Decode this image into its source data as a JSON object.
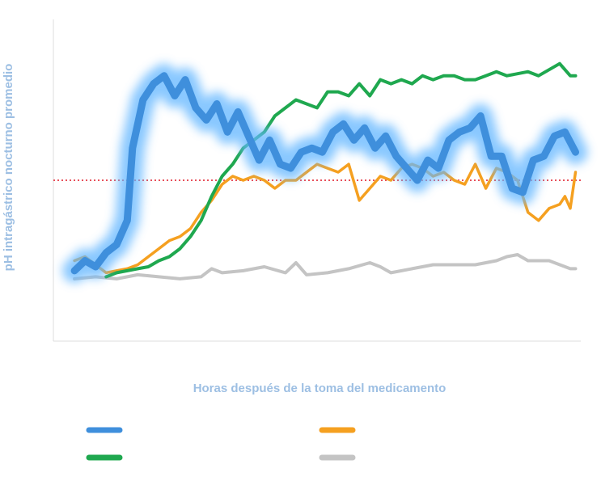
{
  "chart_data": {
    "type": "line",
    "title": "",
    "xlabel": "Horas después de la toma del medicamento",
    "ylabel": "pH intragástrico nocturno promedio",
    "xlim": [
      0,
      100
    ],
    "ylim": [
      0,
      8
    ],
    "grid": false,
    "legend_position": "bottom",
    "threshold": {
      "value": 4.0,
      "style": "dotted",
      "color": "#e8505b"
    },
    "colors": {
      "label": "#9dbfe3",
      "axis": "#dddddd",
      "blue": "#3f8fdc",
      "blue_glow": "#62b6ff",
      "green": "#1fa84f",
      "orange": "#f5a020",
      "gray": "#c4c4c4"
    },
    "series": [
      {
        "name": "",
        "color_key": "blue",
        "glow": true,
        "x": [
          4,
          6,
          8,
          10,
          12,
          14,
          15,
          17,
          19,
          21,
          23,
          25,
          27,
          29,
          31,
          33,
          35,
          37,
          39,
          41,
          43,
          45,
          47,
          49,
          51,
          53,
          55,
          57,
          59,
          61,
          63,
          65,
          67,
          69,
          71,
          73,
          75,
          77,
          79,
          81,
          83,
          85,
          87,
          89,
          91,
          93,
          95,
          97,
          99
        ],
        "values": [
          1.75,
          2.0,
          1.85,
          2.2,
          2.4,
          3.0,
          4.8,
          6.0,
          6.4,
          6.6,
          6.1,
          6.5,
          5.8,
          5.5,
          5.9,
          5.2,
          5.7,
          5.1,
          4.5,
          5.0,
          4.4,
          4.3,
          4.7,
          4.8,
          4.7,
          5.2,
          5.4,
          5.0,
          5.3,
          4.8,
          5.1,
          4.6,
          4.3,
          4.0,
          4.5,
          4.3,
          5.0,
          5.2,
          5.3,
          5.6,
          4.6,
          4.6,
          3.8,
          3.7,
          4.5,
          4.6,
          5.1,
          5.2,
          4.7
        ]
      },
      {
        "name": "",
        "color_key": "green",
        "glow": false,
        "x": [
          10,
          12,
          14,
          16,
          18,
          20,
          22,
          24,
          26,
          28,
          30,
          32,
          34,
          36,
          38,
          40,
          42,
          44,
          46,
          48,
          50,
          52,
          54,
          56,
          58,
          60,
          62,
          64,
          66,
          68,
          70,
          72,
          74,
          76,
          78,
          80,
          82,
          84,
          86,
          88,
          90,
          92,
          94,
          96,
          98,
          99
        ],
        "values": [
          1.6,
          1.7,
          1.75,
          1.8,
          1.85,
          2.0,
          2.1,
          2.3,
          2.6,
          3.0,
          3.6,
          4.1,
          4.4,
          4.8,
          5.0,
          5.2,
          5.6,
          5.8,
          6.0,
          5.9,
          5.8,
          6.2,
          6.2,
          6.1,
          6.4,
          6.1,
          6.5,
          6.4,
          6.5,
          6.4,
          6.6,
          6.5,
          6.6,
          6.6,
          6.5,
          6.5,
          6.6,
          6.7,
          6.6,
          6.65,
          6.7,
          6.6,
          6.75,
          6.9,
          6.6,
          6.6
        ]
      },
      {
        "name": "",
        "color_key": "orange",
        "glow": false,
        "x": [
          4,
          6,
          8,
          10,
          12,
          14,
          16,
          18,
          20,
          22,
          24,
          26,
          28,
          30,
          32,
          34,
          36,
          38,
          40,
          42,
          44,
          46,
          48,
          50,
          52,
          54,
          56,
          58,
          60,
          62,
          64,
          66,
          68,
          70,
          72,
          74,
          76,
          78,
          80,
          82,
          84,
          86,
          88,
          90,
          92,
          94,
          96,
          97,
          98,
          99
        ],
        "values": [
          2.0,
          2.1,
          1.9,
          1.7,
          1.75,
          1.8,
          1.9,
          2.1,
          2.3,
          2.5,
          2.6,
          2.8,
          3.2,
          3.5,
          3.9,
          4.1,
          4.0,
          4.1,
          4.0,
          3.8,
          4.0,
          4.0,
          4.2,
          4.4,
          4.3,
          4.2,
          4.4,
          3.5,
          3.8,
          4.1,
          4.0,
          4.3,
          4.4,
          4.3,
          4.1,
          4.2,
          4.0,
          3.9,
          4.4,
          3.8,
          4.3,
          4.2,
          4.0,
          3.2,
          3.0,
          3.3,
          3.4,
          3.6,
          3.3,
          4.2
        ]
      },
      {
        "name": "",
        "color_key": "gray",
        "glow": false,
        "x": [
          4,
          8,
          12,
          16,
          20,
          24,
          28,
          30,
          32,
          36,
          40,
          44,
          46,
          48,
          52,
          56,
          60,
          62,
          64,
          68,
          72,
          76,
          80,
          84,
          86,
          88,
          90,
          94,
          98,
          99
        ],
        "values": [
          1.55,
          1.6,
          1.55,
          1.65,
          1.6,
          1.55,
          1.6,
          1.8,
          1.7,
          1.75,
          1.85,
          1.7,
          1.95,
          1.65,
          1.7,
          1.8,
          1.95,
          1.85,
          1.7,
          1.8,
          1.9,
          1.9,
          1.9,
          2.0,
          2.1,
          2.15,
          2.0,
          2.0,
          1.8,
          1.8
        ]
      }
    ]
  }
}
